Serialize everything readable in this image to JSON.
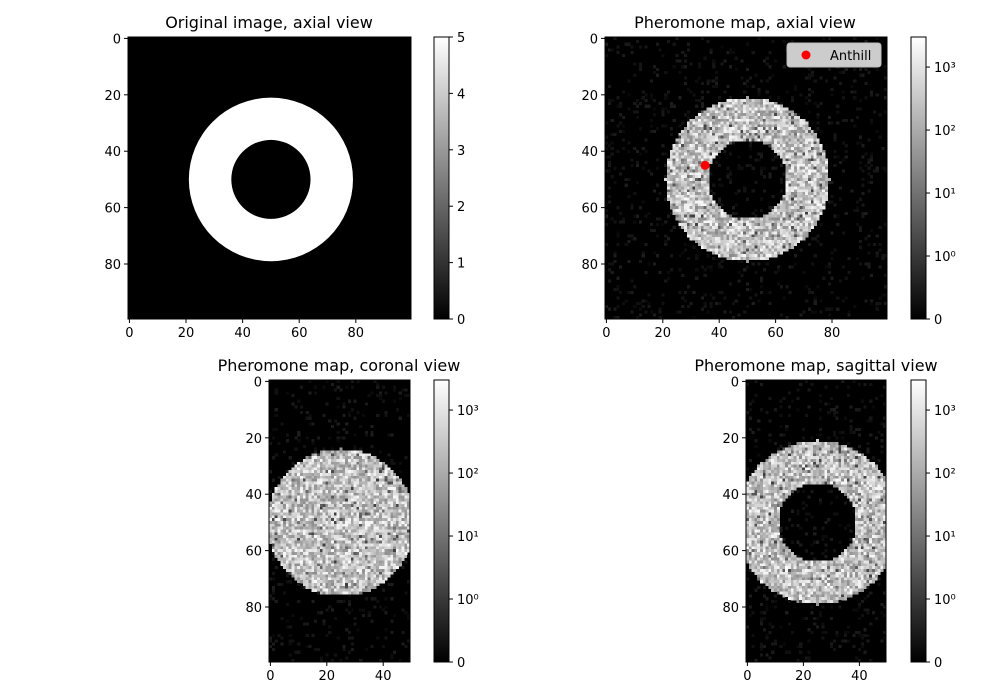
{
  "chart_data": [
    {
      "type": "heatmap",
      "title": "Original image, axial view",
      "shape": "ring",
      "array_size": [
        100,
        100
      ],
      "ring_center": [
        50,
        50
      ],
      "ring_inner_radius": 14,
      "ring_outer_radius": 29,
      "xticks": [
        "0",
        "20",
        "40",
        "60",
        "80"
      ],
      "yticks": [
        "0",
        "20",
        "40",
        "60",
        "80"
      ],
      "colorbar": {
        "scale": "linear",
        "vmin": 0,
        "vmax": 5,
        "ticks": [
          "0",
          "1",
          "2",
          "3",
          "4",
          "5"
        ]
      },
      "inside_value": 5,
      "outside_value": 0
    },
    {
      "type": "heatmap",
      "title": "Pheromone map, axial view",
      "shape": "ring",
      "array_size": [
        100,
        100
      ],
      "ring_center": [
        50,
        50
      ],
      "ring_inner_radius": 14,
      "ring_outer_radius": 29,
      "xticks": [
        "0",
        "20",
        "40",
        "60",
        "80"
      ],
      "yticks": [
        "0",
        "20",
        "40",
        "60",
        "80"
      ],
      "colorbar": {
        "scale": "symlog",
        "vmin": 0,
        "vmax": 3000,
        "ticks": [
          "0",
          "10⁰",
          "10¹",
          "10²",
          "10³"
        ]
      },
      "marker": {
        "label": "Anthill",
        "x": 35,
        "y": 45,
        "color": "#ff0000"
      },
      "legend_position": "upper right"
    },
    {
      "type": "heatmap",
      "title": "Pheromone map, coronal view",
      "shape": "disc",
      "array_size": [
        100,
        50
      ],
      "disc_center": [
        25,
        50
      ],
      "disc_radius": 26,
      "xticks": [
        "0",
        "20",
        "40"
      ],
      "yticks": [
        "0",
        "20",
        "40",
        "60",
        "80"
      ],
      "colorbar": {
        "scale": "symlog",
        "vmin": 0,
        "vmax": 3000,
        "ticks": [
          "0",
          "10⁰",
          "10¹",
          "10²",
          "10³"
        ]
      }
    },
    {
      "type": "heatmap",
      "title": "Pheromone map, sagittal view",
      "shape": "ring",
      "array_size": [
        100,
        50
      ],
      "ring_center": [
        25,
        50
      ],
      "ring_inner_radius": 14,
      "ring_outer_radius": 29,
      "xticks": [
        "0",
        "20",
        "40"
      ],
      "yticks": [
        "0",
        "20",
        "40",
        "60",
        "80"
      ],
      "colorbar": {
        "scale": "symlog",
        "vmin": 0,
        "vmax": 3000,
        "ticks": [
          "0",
          "10⁰",
          "10¹",
          "10²",
          "10³"
        ]
      }
    }
  ]
}
